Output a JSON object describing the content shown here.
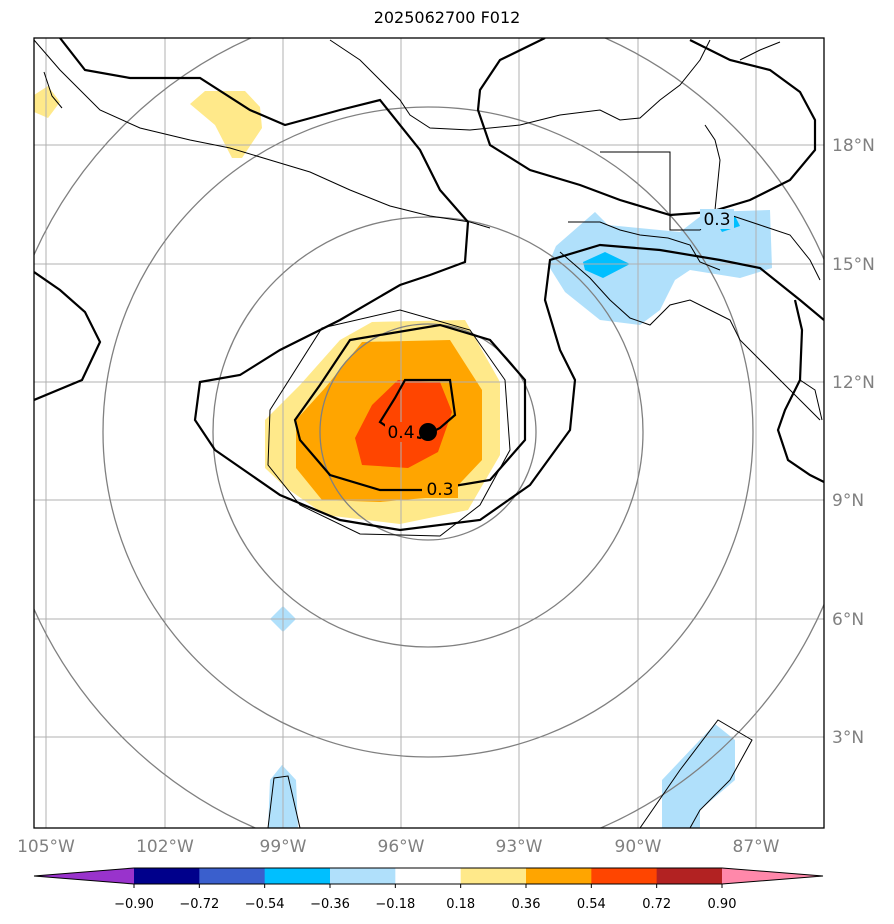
{
  "title": "2025062700 F012",
  "longitude_ticks": [
    "105°W",
    "102°W",
    "99°W",
    "96°W",
    "93°W",
    "90°W",
    "87°W"
  ],
  "latitude_ticks": [
    "18°N",
    "15°N",
    "12°N",
    "9°N",
    "6°N",
    "3°N"
  ],
  "contour_labels": [
    "0.4",
    "0.3",
    "0.3"
  ],
  "colorbar": {
    "ticks": [
      "−0.90",
      "−0.72",
      "−0.54",
      "−0.36",
      "−0.18",
      "0.18",
      "0.36",
      "0.54",
      "0.72",
      "0.90"
    ],
    "colors": [
      "#9933cc",
      "#00008b",
      "#3a5fcd",
      "#00bfff",
      "#b0e0fb",
      "#ffffff",
      "#ffe98a",
      "#ffa500",
      "#ff4500",
      "#b22222",
      "#ff88aa"
    ]
  },
  "colors": {
    "grid": "#b0b0b0",
    "range_ring": "#808080",
    "coast": "#000000",
    "tick_label": "#808080",
    "center_marker": "#000000"
  }
}
